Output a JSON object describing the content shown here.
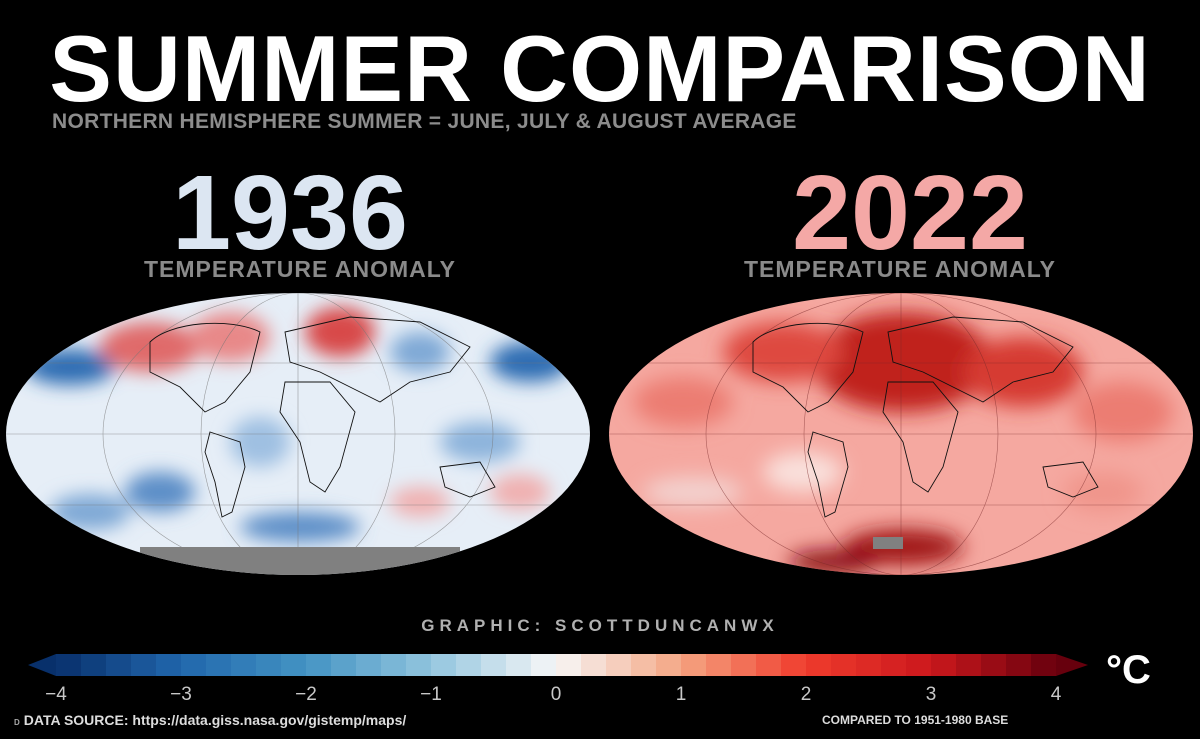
{
  "header": {
    "title": "SUMMER COMPARISON",
    "subtitle": "NORTHERN HEMISPHERE SUMMER = JUNE, JULY & AUGUST AVERAGE"
  },
  "panels": [
    {
      "year": "1936",
      "label": "TEMPERATURE ANOMALY",
      "year_color": "#dce6f2",
      "dominant": "cool"
    },
    {
      "year": "2022",
      "label": "TEMPERATURE ANOMALY",
      "year_color": "#f4a8a6",
      "dominant": "warm"
    }
  ],
  "credit": "GRAPHIC: SCOTTDUNCANWX",
  "colorbar": {
    "ticks": [
      "−4",
      "−3",
      "−2",
      "−1",
      "0",
      "1",
      "2",
      "3",
      "4"
    ],
    "min": -4,
    "max": 4,
    "unit": "°C",
    "cold_color": "#08306b",
    "neutral_color": "#f7f7f7",
    "warm_color": "#67000d"
  },
  "footer": {
    "marker": "D",
    "source": "DATA SOURCE: https://data.giss.nasa.gov/gistemp/maps/",
    "base": "COMPARED TO 1951-1980 BASE"
  }
}
